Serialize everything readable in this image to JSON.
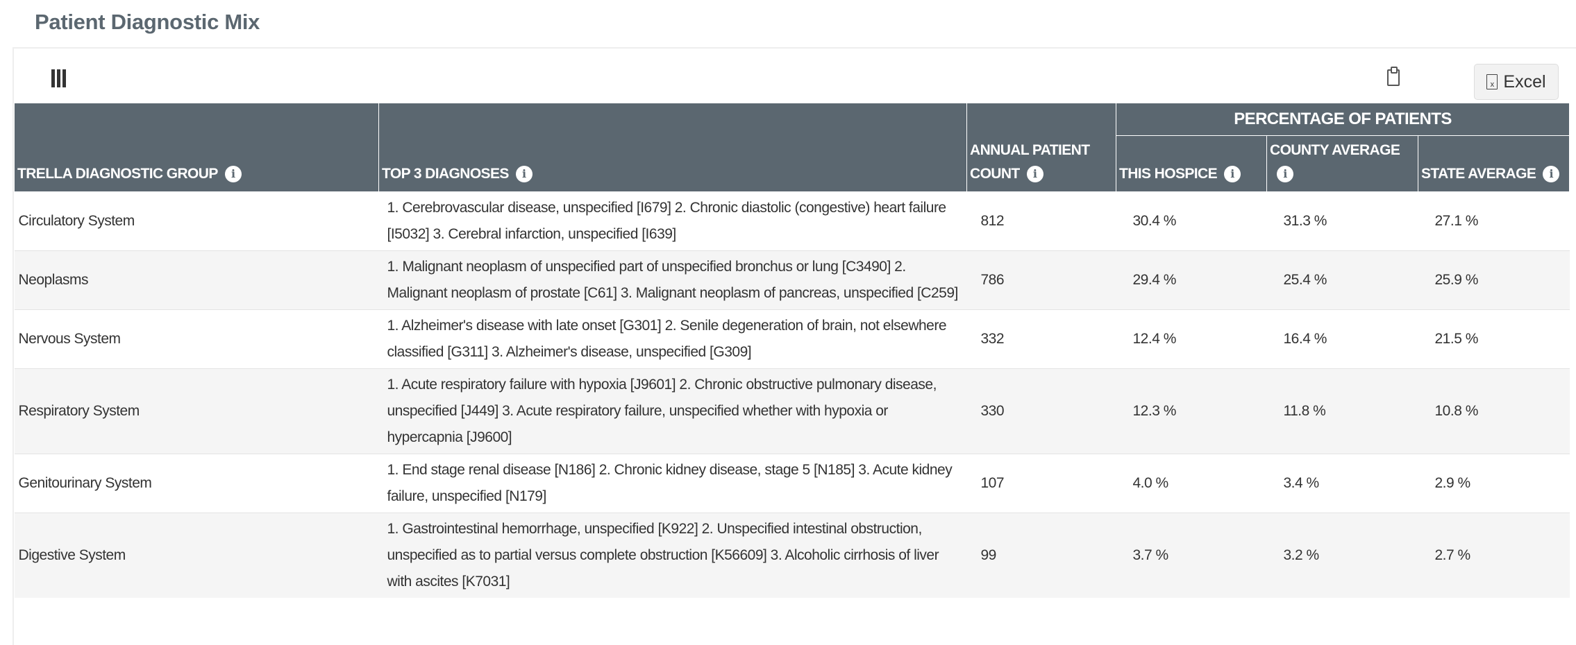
{
  "title": "Patient Diagnostic Mix",
  "toolbar": {
    "columns_icon": "columns-icon",
    "copy_icon": "clipboard-icon",
    "excel_label": "Excel",
    "excel_icon": "file-excel-icon"
  },
  "table": {
    "headers": {
      "group": "TRELLA DIAGNOSTIC GROUP",
      "diagnoses": "TOP 3 DIAGNOSES",
      "count": "ANNUAL PATIENT COUNT",
      "percentage_group": "PERCENTAGE OF PATIENTS",
      "hospice": "THIS HOSPICE",
      "county": "COUNTY AVERAGE",
      "state": "STATE AVERAGE",
      "info_glyph": "i"
    },
    "rows": [
      {
        "group": "Circulatory System",
        "diagnoses": "1. Cerebrovascular disease, unspecified [I679] 2. Chronic diastolic (congestive) heart failure [I5032] 3. Cerebral infarction, unspecified [I639]",
        "count": "812",
        "hospice": "30.4 %",
        "county": "31.3 %",
        "state": "27.1 %"
      },
      {
        "group": "Neoplasms",
        "diagnoses": "1. Malignant neoplasm of unspecified part of unspecified bronchus or lung [C3490] 2. Malignant neoplasm of prostate [C61] 3. Malignant neoplasm of pancreas, unspecified [C259]",
        "count": "786",
        "hospice": "29.4 %",
        "county": "25.4 %",
        "state": "25.9 %"
      },
      {
        "group": "Nervous System",
        "diagnoses": "1. Alzheimer's disease with late onset [G301] 2. Senile degeneration of brain, not elsewhere classified [G311] 3. Alzheimer's disease, unspecified [G309]",
        "count": "332",
        "hospice": "12.4 %",
        "county": "16.4 %",
        "state": "21.5 %"
      },
      {
        "group": "Respiratory System",
        "diagnoses": "1. Acute respiratory failure with hypoxia [J9601] 2. Chronic obstructive pulmonary disease, unspecified [J449] 3. Acute respiratory failure, unspecified whether with hypoxia or hypercapnia [J9600]",
        "count": "330",
        "hospice": "12.3 %",
        "county": "11.8 %",
        "state": "10.8 %"
      },
      {
        "group": "Genitourinary System",
        "diagnoses": "1. End stage renal disease [N186] 2. Chronic kidney disease, stage 5 [N185] 3. Acute kidney failure, unspecified [N179]",
        "count": "107",
        "hospice": "4.0 %",
        "county": "3.4 %",
        "state": "2.9 %"
      },
      {
        "group": "Digestive System",
        "diagnoses": "1. Gastrointestinal hemorrhage, unspecified [K922] 2. Unspecified intestinal obstruction, unspecified as to partial versus complete obstruction [K56609] 3. Alcoholic cirrhosis of liver with ascites [K7031]",
        "count": "99",
        "hospice": "3.7 %",
        "county": "3.2 %",
        "state": "2.7 %"
      }
    ]
  },
  "colors": {
    "header_bg": "#5b6770",
    "title": "#5b6770",
    "row_alt": "#f5f5f5"
  }
}
